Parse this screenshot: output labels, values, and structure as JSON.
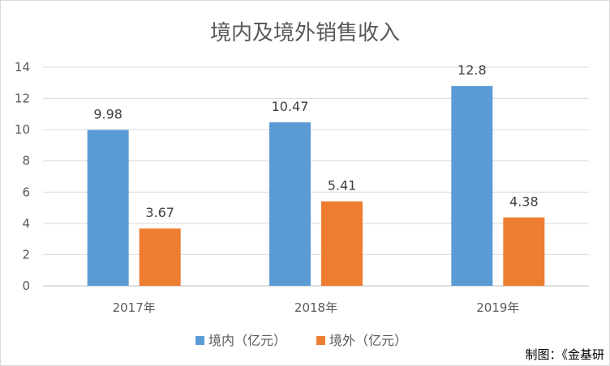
{
  "chart_data": {
    "type": "bar",
    "title": "境内及境外销售收入",
    "categories": [
      "2017年",
      "2018年",
      "2019年"
    ],
    "series": [
      {
        "name": "境内（亿元）",
        "color": "#5b9bd5",
        "values": [
          9.98,
          10.47,
          12.8
        ]
      },
      {
        "name": "境外（亿元）",
        "color": "#ed7d31",
        "values": [
          3.67,
          5.41,
          4.38
        ]
      }
    ],
    "data_labels": [
      [
        "9.98",
        "10.47",
        "12.8"
      ],
      [
        "3.67",
        "5.41",
        "4.38"
      ]
    ],
    "ylim": [
      0,
      14
    ],
    "yticks": [
      "0",
      "2",
      "4",
      "6",
      "8",
      "10",
      "12",
      "14"
    ],
    "grid": true,
    "legend_position": "bottom"
  },
  "credit": "制图：《金基研"
}
